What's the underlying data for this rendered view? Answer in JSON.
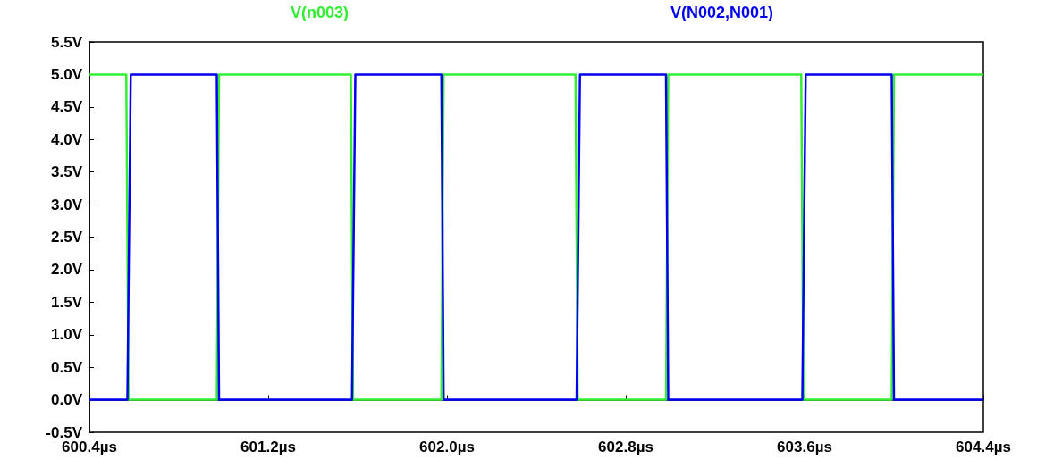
{
  "chart_data": {
    "type": "line",
    "series": [
      {
        "name": "V(n003)",
        "color": "#33ee33",
        "x": [
          600.4,
          600.565,
          600.575,
          600.97,
          600.98,
          601.57,
          601.58,
          601.975,
          601.985,
          602.575,
          602.585,
          602.98,
          602.99,
          603.585,
          603.595,
          603.99,
          604.0,
          604.4
        ],
        "values": [
          5,
          5,
          0,
          0,
          5,
          5,
          0,
          0,
          5,
          5,
          0,
          0,
          5,
          5,
          0,
          0,
          5,
          5
        ]
      },
      {
        "name": "V(N002,N001)",
        "color": "#0000ee",
        "x": [
          600.4,
          600.57,
          600.585,
          600.97,
          600.98,
          601.575,
          601.59,
          601.975,
          601.985,
          602.58,
          602.595,
          602.98,
          602.99,
          603.59,
          603.605,
          603.99,
          604.0,
          604.4
        ],
        "values": [
          0,
          0,
          5,
          5,
          0,
          0,
          5,
          5,
          0,
          0,
          5,
          5,
          0,
          0,
          5,
          5,
          0,
          0
        ]
      }
    ],
    "xlim": [
      600.4,
      604.4
    ],
    "xticks": [
      {
        "value": 600.4,
        "label": "600.4µs"
      },
      {
        "value": 601.2,
        "label": "601.2µs"
      },
      {
        "value": 602.0,
        "label": "602.0µs"
      },
      {
        "value": 602.8,
        "label": "602.8µs"
      },
      {
        "value": 603.6,
        "label": "603.6µs"
      },
      {
        "value": 604.4,
        "label": "604.4µs"
      }
    ],
    "ylim": [
      -0.5,
      5.5
    ],
    "yticks": [
      {
        "value": -0.5,
        "label": "-0.5V"
      },
      {
        "value": 0,
        "label": "0.0V"
      },
      {
        "value": 0.5,
        "label": "0.5V"
      },
      {
        "value": 1,
        "label": "1.0V"
      },
      {
        "value": 1.5,
        "label": "1.5V"
      },
      {
        "value": 2,
        "label": "2.0V"
      },
      {
        "value": 2.5,
        "label": "2.5V"
      },
      {
        "value": 3,
        "label": "3.0V"
      },
      {
        "value": 3.5,
        "label": "3.5V"
      },
      {
        "value": 4,
        "label": "4.0V"
      },
      {
        "value": 4.5,
        "label": "4.5V"
      },
      {
        "value": 5,
        "label": "5.0V"
      },
      {
        "value": 5.5,
        "label": "5.5V"
      }
    ],
    "legend": "top",
    "marker": "none",
    "line_style": "solid"
  }
}
